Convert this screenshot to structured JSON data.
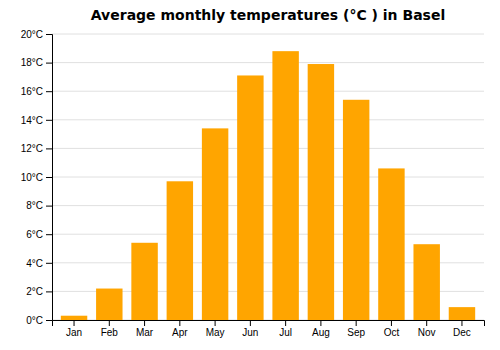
{
  "chart_data": {
    "type": "bar",
    "title": "Average monthly temperatures (°C ) in Basel",
    "categories": [
      "Jan",
      "Feb",
      "Mar",
      "Apr",
      "May",
      "Jun",
      "Jul",
      "Aug",
      "Sep",
      "Oct",
      "Nov",
      "Dec"
    ],
    "values": [
      0.3,
      2.2,
      5.4,
      9.7,
      13.4,
      17.1,
      18.8,
      17.9,
      15.4,
      10.6,
      5.3,
      0.9
    ],
    "color": "#FFA500",
    "ylim": [
      0,
      20
    ],
    "yticks": [
      {
        "value": 0,
        "label": "0°C"
      },
      {
        "value": 2,
        "label": "2°C"
      },
      {
        "value": 4,
        "label": "4°C"
      },
      {
        "value": 6,
        "label": "6°C"
      },
      {
        "value": 8,
        "label": "8°C"
      },
      {
        "value": 10,
        "label": "10°C"
      },
      {
        "value": 12,
        "label": "12°C"
      },
      {
        "value": 14,
        "label": "14°C"
      },
      {
        "value": 16,
        "label": "16°C"
      },
      {
        "value": 18,
        "label": "18°C"
      },
      {
        "value": 20,
        "label": "20°C"
      }
    ],
    "grid": true
  }
}
